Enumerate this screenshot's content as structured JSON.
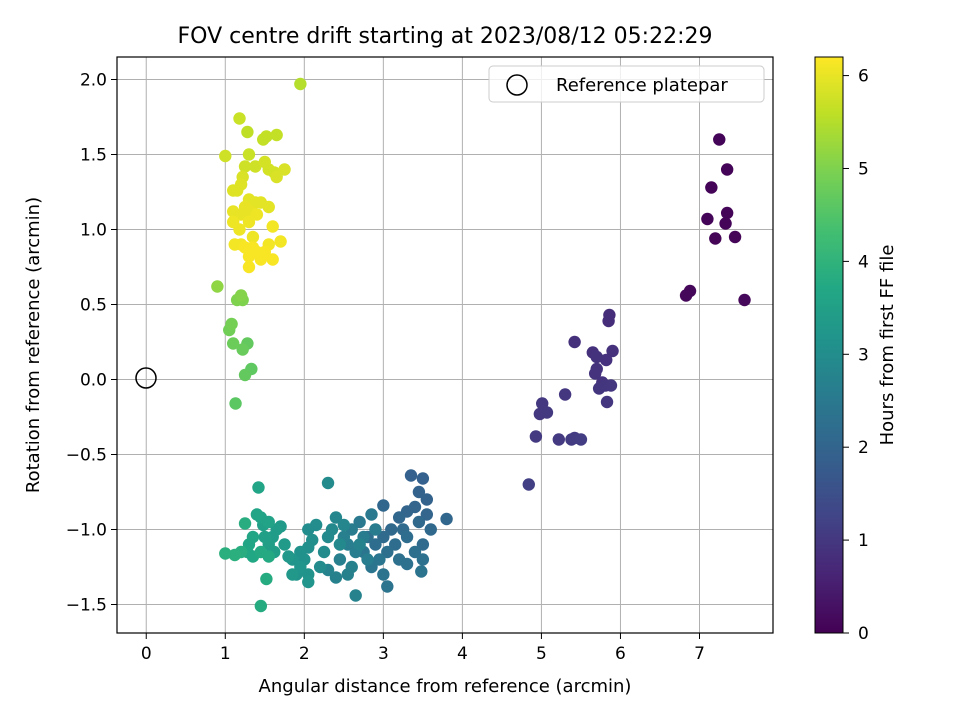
{
  "chart_data": {
    "type": "scatter",
    "title": "FOV centre drift starting at 2023/08/12 05:22:29",
    "xlabel": "Angular distance from reference (arcmin)",
    "ylabel": "Rotation from reference (arcmin)",
    "colorbar_label": "Hours from first FF file",
    "xlim": [
      -0.37,
      7.93
    ],
    "ylim": [
      -1.69,
      2.15
    ],
    "xticks": [
      0,
      1,
      2,
      3,
      4,
      5,
      6,
      7
    ],
    "yticks": [
      -1.5,
      -1.0,
      -0.5,
      0.0,
      0.5,
      1.0,
      1.5,
      2.0
    ],
    "xtick_labels": [
      "0",
      "1",
      "2",
      "3",
      "4",
      "5",
      "6",
      "7"
    ],
    "ytick_labels": [
      "−1.5",
      "−1.0",
      "−0.5",
      "0.0",
      "0.5",
      "1.0",
      "1.5",
      "2.0"
    ],
    "colorbar_range": [
      0,
      6.2
    ],
    "colorbar_ticks": [
      0,
      1,
      2,
      3,
      4,
      5,
      6
    ],
    "colorbar_tick_labels": [
      "0",
      "1",
      "2",
      "3",
      "4",
      "5",
      "6"
    ],
    "colormap": "viridis",
    "grid": true,
    "legend": {
      "position": "top-right",
      "entries": [
        "Reference platepar"
      ]
    },
    "reference_point": {
      "x": 0,
      "y": 0,
      "label": "Reference platepar",
      "marker": "open-circle"
    },
    "points": [
      [
        7.25,
        1.6,
        0.05
      ],
      [
        7.35,
        1.4,
        0.05
      ],
      [
        7.15,
        1.28,
        0.06
      ],
      [
        7.1,
        1.07,
        0.06
      ],
      [
        7.35,
        1.11,
        0.07
      ],
      [
        7.33,
        1.04,
        0.07
      ],
      [
        7.2,
        0.94,
        0.08
      ],
      [
        7.45,
        0.95,
        0.08
      ],
      [
        6.88,
        0.59,
        0.1
      ],
      [
        6.83,
        0.56,
        0.1
      ],
      [
        7.57,
        0.53,
        0.12
      ],
      [
        5.86,
        0.43,
        0.8
      ],
      [
        5.85,
        0.39,
        0.8
      ],
      [
        5.42,
        0.25,
        0.85
      ],
      [
        5.65,
        0.18,
        0.85
      ],
      [
        5.9,
        0.19,
        0.87
      ],
      [
        5.82,
        0.13,
        0.88
      ],
      [
        5.7,
        0.15,
        0.9
      ],
      [
        5.7,
        0.07,
        0.9
      ],
      [
        5.68,
        0.04,
        0.92
      ],
      [
        5.77,
        -0.02,
        0.92
      ],
      [
        5.73,
        -0.06,
        0.95
      ],
      [
        5.81,
        -0.04,
        0.95
      ],
      [
        5.88,
        -0.04,
        0.97
      ],
      [
        5.3,
        -0.1,
        0.97
      ],
      [
        5.83,
        -0.15,
        0.98
      ],
      [
        5.01,
        -0.16,
        1.0
      ],
      [
        4.98,
        -0.23,
        1.0
      ],
      [
        5.07,
        -0.22,
        1.02
      ],
      [
        4.93,
        -0.38,
        1.05
      ],
      [
        5.22,
        -0.4,
        1.05
      ],
      [
        5.38,
        -0.4,
        1.07
      ],
      [
        5.42,
        -0.39,
        1.08
      ],
      [
        5.5,
        -0.4,
        1.1
      ],
      [
        4.84,
        -0.7,
        1.15
      ],
      [
        3.35,
        -0.64,
        1.9
      ],
      [
        3.5,
        -0.66,
        1.9
      ],
      [
        3.45,
        -0.75,
        1.95
      ],
      [
        3.55,
        -0.8,
        1.95
      ],
      [
        3.4,
        -0.85,
        2.0
      ],
      [
        3.3,
        -0.88,
        2.0
      ],
      [
        3.55,
        -0.9,
        2.0
      ],
      [
        3.2,
        -0.92,
        2.05
      ],
      [
        3.0,
        -0.84,
        2.05
      ],
      [
        3.8,
        -0.93,
        2.05
      ],
      [
        3.6,
        -1.0,
        2.1
      ],
      [
        3.45,
        -0.95,
        2.1
      ],
      [
        3.1,
        -1.0,
        2.1
      ],
      [
        3.0,
        -1.05,
        2.15
      ],
      [
        3.25,
        -1.0,
        2.15
      ],
      [
        3.5,
        -1.1,
        2.15
      ],
      [
        3.3,
        -1.05,
        2.2
      ],
      [
        2.9,
        -1.1,
        2.2
      ],
      [
        3.15,
        -1.1,
        2.2
      ],
      [
        3.4,
        -1.15,
        2.25
      ],
      [
        3.05,
        -1.15,
        2.25
      ],
      [
        2.8,
        -1.05,
        2.25
      ],
      [
        3.2,
        -1.2,
        2.3
      ],
      [
        3.3,
        -1.23,
        2.3
      ],
      [
        3.5,
        -1.2,
        2.3
      ],
      [
        3.48,
        -1.28,
        2.35
      ],
      [
        3.0,
        -1.3,
        2.35
      ],
      [
        3.05,
        -1.38,
        2.35
      ],
      [
        2.85,
        -1.25,
        2.4
      ],
      [
        2.95,
        -1.2,
        2.4
      ],
      [
        2.75,
        -1.15,
        2.4
      ],
      [
        2.85,
        -0.9,
        2.5
      ],
      [
        2.7,
        -0.95,
        2.5
      ],
      [
        2.6,
        -1.0,
        2.55
      ],
      [
        2.75,
        -1.05,
        2.55
      ],
      [
        2.9,
        -1.0,
        2.55
      ],
      [
        2.55,
        -1.1,
        2.6
      ],
      [
        2.65,
        -1.15,
        2.6
      ],
      [
        2.8,
        -1.2,
        2.6
      ],
      [
        2.5,
        -1.05,
        2.65
      ],
      [
        2.45,
        -1.2,
        2.65
      ],
      [
        2.6,
        -1.25,
        2.7
      ],
      [
        2.55,
        -1.3,
        2.7
      ],
      [
        2.4,
        -1.32,
        2.7
      ],
      [
        2.65,
        -1.44,
        2.75
      ],
      [
        2.3,
        -1.27,
        2.75
      ],
      [
        2.7,
        -1.1,
        2.75
      ],
      [
        2.4,
        -0.92,
        2.85
      ],
      [
        2.5,
        -0.97,
        2.85
      ],
      [
        2.35,
        -1.0,
        2.9
      ],
      [
        2.3,
        -1.05,
        2.9
      ],
      [
        2.45,
        -1.1,
        2.9
      ],
      [
        2.25,
        -1.15,
        2.95
      ],
      [
        2.2,
        -1.25,
        2.95
      ],
      [
        2.3,
        -0.69,
        2.95
      ],
      [
        2.15,
        -0.97,
        3.0
      ],
      [
        2.05,
        -1.0,
        3.0
      ],
      [
        2.1,
        -1.07,
        3.05
      ],
      [
        2.05,
        -1.12,
        3.05
      ],
      [
        1.95,
        -1.15,
        3.1
      ],
      [
        2.0,
        -1.2,
        3.1
      ],
      [
        2.05,
        -1.3,
        3.15
      ],
      [
        1.9,
        -1.3,
        3.15
      ],
      [
        2.05,
        -1.35,
        3.2
      ],
      [
        1.85,
        -1.2,
        3.2
      ],
      [
        1.95,
        -1.25,
        3.2
      ],
      [
        1.8,
        -1.18,
        3.3
      ],
      [
        1.85,
        -1.3,
        3.3
      ],
      [
        1.75,
        -1.1,
        3.35
      ],
      [
        1.7,
        -0.98,
        3.35
      ],
      [
        1.65,
        -1.0,
        3.4
      ],
      [
        1.6,
        -1.05,
        3.4
      ],
      [
        1.62,
        -1.15,
        3.45
      ],
      [
        1.55,
        -1.1,
        3.45
      ],
      [
        1.5,
        -1.05,
        3.5
      ],
      [
        1.48,
        -0.97,
        3.5
      ],
      [
        1.55,
        -0.95,
        3.55
      ],
      [
        1.45,
        -0.92,
        3.55
      ],
      [
        1.4,
        -0.9,
        3.6
      ],
      [
        1.42,
        -0.72,
        3.6
      ],
      [
        1.35,
        -1.05,
        3.65
      ],
      [
        1.3,
        -1.1,
        3.65
      ],
      [
        1.28,
        -1.15,
        3.7
      ],
      [
        1.35,
        -1.18,
        3.7
      ],
      [
        1.45,
        -1.15,
        3.75
      ],
      [
        1.55,
        -1.18,
        3.75
      ],
      [
        1.52,
        -1.33,
        3.8
      ],
      [
        1.45,
        -1.51,
        3.8
      ],
      [
        1.25,
        -0.96,
        3.85
      ],
      [
        1.2,
        -1.15,
        3.85
      ],
      [
        1.12,
        -1.17,
        3.9
      ],
      [
        1.0,
        -1.16,
        3.9
      ],
      [
        1.13,
        -0.16,
        4.6
      ],
      [
        1.33,
        0.07,
        4.65
      ],
      [
        1.25,
        0.03,
        4.7
      ],
      [
        1.28,
        0.24,
        4.7
      ],
      [
        1.22,
        0.2,
        4.75
      ],
      [
        1.1,
        0.24,
        4.8
      ],
      [
        1.05,
        0.33,
        4.85
      ],
      [
        1.08,
        0.37,
        4.9
      ],
      [
        1.22,
        0.53,
        5.0
      ],
      [
        1.15,
        0.53,
        5.0
      ],
      [
        1.2,
        0.56,
        5.05
      ],
      [
        0.9,
        0.62,
        5.15
      ],
      [
        1.95,
        1.97,
        5.5
      ],
      [
        1.28,
        1.65,
        5.6
      ],
      [
        1.52,
        1.62,
        5.65
      ],
      [
        1.48,
        1.6,
        5.65
      ],
      [
        1.65,
        1.63,
        5.65
      ],
      [
        1.18,
        1.74,
        5.7
      ],
      [
        1.3,
        1.5,
        5.7
      ],
      [
        1.0,
        1.49,
        5.75
      ],
      [
        1.25,
        1.42,
        5.75
      ],
      [
        1.38,
        1.42,
        5.75
      ],
      [
        1.5,
        1.45,
        5.8
      ],
      [
        1.55,
        1.4,
        5.8
      ],
      [
        1.62,
        1.38,
        5.8
      ],
      [
        1.65,
        1.35,
        5.85
      ],
      [
        1.75,
        1.4,
        5.85
      ],
      [
        1.22,
        1.35,
        5.85
      ],
      [
        1.2,
        1.3,
        5.9
      ],
      [
        1.15,
        1.26,
        5.9
      ],
      [
        1.1,
        1.26,
        5.9
      ],
      [
        1.3,
        1.2,
        5.95
      ],
      [
        1.38,
        1.18,
        5.95
      ],
      [
        1.45,
        1.18,
        5.95
      ],
      [
        1.55,
        1.15,
        5.95
      ],
      [
        1.1,
        1.12,
        6.0
      ],
      [
        1.2,
        1.1,
        6.0
      ],
      [
        1.25,
        1.15,
        6.0
      ],
      [
        1.32,
        1.12,
        6.0
      ],
      [
        1.4,
        1.1,
        6.05
      ],
      [
        1.3,
        1.05,
        6.05
      ],
      [
        1.1,
        1.05,
        6.05
      ],
      [
        1.18,
        1.0,
        6.05
      ],
      [
        1.35,
        0.95,
        6.05
      ],
      [
        1.6,
        1.02,
        6.1
      ],
      [
        1.55,
        0.9,
        6.1
      ],
      [
        1.7,
        0.92,
        6.1
      ],
      [
        1.2,
        0.9,
        6.1
      ],
      [
        1.12,
        0.9,
        6.1
      ],
      [
        1.25,
        0.88,
        6.15
      ],
      [
        1.35,
        0.88,
        6.15
      ],
      [
        1.4,
        0.85,
        6.15
      ],
      [
        1.5,
        0.85,
        6.15
      ],
      [
        1.3,
        0.82,
        6.15
      ],
      [
        1.45,
        0.8,
        6.15
      ],
      [
        1.6,
        0.8,
        6.15
      ],
      [
        1.3,
        0.75,
        6.15
      ]
    ]
  }
}
